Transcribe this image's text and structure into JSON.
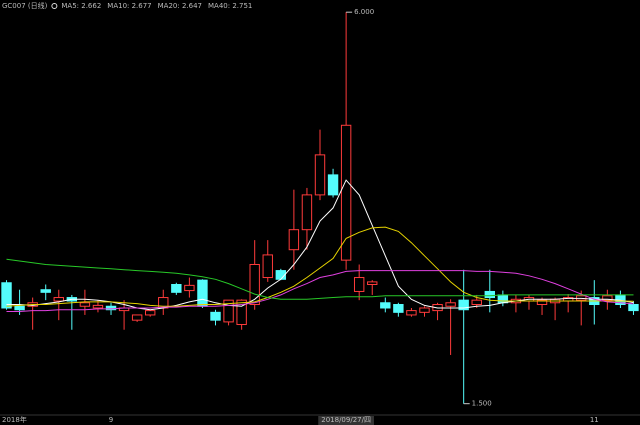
{
  "chart_data": {
    "type": "candlestick",
    "title": "GC007 (日线)",
    "categories": [
      "2018年",
      null,
      null,
      null,
      null,
      null,
      null,
      null,
      "9",
      null,
      null,
      null,
      null,
      null,
      null,
      null,
      null,
      null,
      null,
      null,
      null,
      null,
      null,
      null,
      null,
      null,
      "2018/09/27/四",
      null,
      null,
      null,
      null,
      null,
      null,
      null,
      null,
      null,
      null,
      null,
      null,
      null,
      null,
      null,
      null,
      null,
      null,
      "11",
      null,
      null,
      null
    ],
    "open": [
      2.89,
      2.62,
      2.62,
      2.81,
      2.68,
      2.72,
      2.62,
      2.6,
      2.62,
      2.57,
      2.46,
      2.52,
      2.6,
      2.87,
      2.8,
      2.92,
      2.55,
      2.44,
      2.41,
      2.64,
      2.95,
      3.03,
      3.27,
      3.5,
      3.9,
      4.13,
      3.15,
      2.79,
      2.87,
      2.66,
      2.64,
      2.52,
      2.55,
      2.57,
      2.62,
      2.69,
      2.64,
      2.79,
      2.75,
      2.66,
      2.68,
      2.64,
      2.66,
      2.68,
      2.69,
      2.72,
      2.69,
      2.75,
      2.64
    ],
    "high": [
      2.92,
      2.81,
      2.72,
      2.87,
      2.81,
      2.75,
      2.81,
      2.69,
      2.66,
      2.69,
      2.52,
      2.58,
      2.81,
      2.89,
      2.95,
      2.93,
      2.58,
      2.69,
      2.7,
      3.38,
      3.38,
      3.05,
      3.96,
      3.98,
      4.65,
      4.2,
      6.0,
      3.1,
      2.92,
      2.72,
      2.66,
      2.6,
      2.62,
      2.66,
      2.7,
      3.04,
      2.75,
      3.04,
      2.8,
      2.75,
      2.75,
      2.72,
      2.72,
      2.76,
      2.8,
      2.92,
      2.81,
      2.8,
      2.68
    ],
    "low": [
      2.58,
      2.52,
      2.35,
      2.69,
      2.46,
      2.35,
      2.52,
      2.55,
      2.52,
      2.35,
      2.44,
      2.5,
      2.52,
      2.75,
      2.72,
      2.6,
      2.4,
      2.4,
      2.35,
      2.58,
      2.9,
      2.92,
      3.04,
      3.27,
      3.84,
      3.87,
      3.04,
      2.69,
      2.75,
      2.55,
      2.5,
      2.5,
      2.5,
      2.46,
      2.06,
      1.5,
      2.6,
      2.55,
      2.62,
      2.55,
      2.58,
      2.52,
      2.46,
      2.55,
      2.4,
      2.41,
      2.58,
      2.6,
      2.52
    ],
    "close": [
      2.6,
      2.58,
      2.66,
      2.78,
      2.72,
      2.68,
      2.66,
      2.63,
      2.58,
      2.6,
      2.52,
      2.57,
      2.72,
      2.78,
      2.86,
      2.62,
      2.46,
      2.69,
      2.69,
      3.1,
      3.21,
      2.93,
      3.5,
      3.9,
      4.36,
      3.9,
      4.7,
      2.95,
      2.9,
      2.6,
      2.55,
      2.57,
      2.6,
      2.64,
      2.66,
      2.58,
      2.69,
      2.72,
      2.66,
      2.7,
      2.72,
      2.69,
      2.7,
      2.72,
      2.74,
      2.64,
      2.74,
      2.64,
      2.57
    ],
    "up_color": "#ff3b3b",
    "down_color": "#54fcfc",
    "series": [
      {
        "name": "MA5: 2.662",
        "color": "#ffffff",
        "values": [
          2.64,
          2.64,
          2.63,
          2.65,
          2.67,
          2.7,
          2.7,
          2.69,
          2.67,
          2.64,
          2.6,
          2.58,
          2.6,
          2.63,
          2.67,
          2.7,
          2.66,
          2.63,
          2.62,
          2.7,
          2.83,
          2.93,
          3.1,
          3.3,
          3.6,
          3.75,
          4.07,
          3.9,
          3.55,
          3.2,
          2.85,
          2.7,
          2.63,
          2.6,
          2.6,
          2.6,
          2.62,
          2.63,
          2.66,
          2.68,
          2.7,
          2.7,
          2.7,
          2.71,
          2.71,
          2.7,
          2.7,
          2.69,
          2.662
        ]
      },
      {
        "name": "MA10: 2.677",
        "color": "#e6d300",
        "values": [
          2.62,
          2.63,
          2.64,
          2.64,
          2.65,
          2.66,
          2.67,
          2.67,
          2.67,
          2.66,
          2.65,
          2.63,
          2.62,
          2.62,
          2.63,
          2.64,
          2.64,
          2.65,
          2.66,
          2.67,
          2.72,
          2.78,
          2.85,
          2.95,
          3.06,
          3.17,
          3.4,
          3.47,
          3.52,
          3.53,
          3.48,
          3.35,
          3.2,
          3.05,
          2.9,
          2.78,
          2.72,
          2.69,
          2.68,
          2.68,
          2.68,
          2.68,
          2.68,
          2.68,
          2.68,
          2.68,
          2.68,
          2.68,
          2.677
        ]
      },
      {
        "name": "MA20: 2.647",
        "color": "#e040e0",
        "values": [
          2.56,
          2.56,
          2.57,
          2.57,
          2.58,
          2.58,
          2.58,
          2.59,
          2.59,
          2.6,
          2.6,
          2.6,
          2.61,
          2.61,
          2.62,
          2.62,
          2.62,
          2.63,
          2.64,
          2.66,
          2.7,
          2.75,
          2.82,
          2.88,
          2.95,
          2.98,
          3.02,
          3.03,
          3.03,
          3.03,
          3.03,
          3.03,
          3.03,
          3.03,
          3.03,
          3.03,
          3.02,
          3.02,
          3.01,
          3.0,
          2.97,
          2.93,
          2.88,
          2.82,
          2.76,
          2.7,
          2.67,
          2.66,
          2.647
        ]
      },
      {
        "name": "MA40: 2.751",
        "color": "#28c828",
        "values": [
          3.16,
          3.14,
          3.12,
          3.1,
          3.09,
          3.08,
          3.07,
          3.06,
          3.05,
          3.04,
          3.03,
          3.02,
          3.01,
          3.0,
          2.98,
          2.96,
          2.93,
          2.88,
          2.82,
          2.76,
          2.72,
          2.7,
          2.7,
          2.7,
          2.71,
          2.72,
          2.73,
          2.73,
          2.73,
          2.74,
          2.74,
          2.74,
          2.74,
          2.74,
          2.74,
          2.74,
          2.74,
          2.74,
          2.75,
          2.75,
          2.75,
          2.75,
          2.75,
          2.75,
          2.75,
          2.75,
          2.75,
          2.75,
          2.751
        ]
      }
    ],
    "annotations": [
      {
        "index": 26,
        "value": 6.0,
        "label": "6.000"
      },
      {
        "index": 35,
        "value": 1.5,
        "label": "1.500"
      }
    ],
    "ylim": [
      1.37,
      6.14
    ]
  }
}
